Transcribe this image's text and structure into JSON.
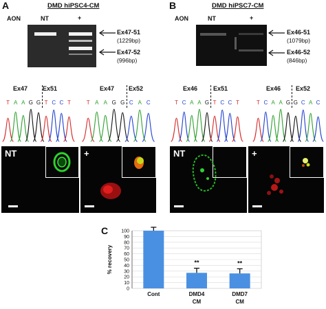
{
  "panel_a": {
    "letter": "A",
    "title": "DMD hiPSC4-CM",
    "aon_label": "AON",
    "lane_nt": "NT",
    "lane_plus": "+",
    "band1_label": "Ex47-51",
    "band1_size": "(1229bp)",
    "band2_label": "Ex47-52",
    "band2_size": "(996bp)",
    "chrom_left_ex_a": "Ex47",
    "chrom_left_ex_b": "Ex51",
    "chrom_right_ex_a": "Ex47",
    "chrom_right_ex_b": "Ex52",
    "seq_left": [
      "T",
      "A",
      "A",
      "G",
      "G",
      "T",
      "C",
      "C",
      "T"
    ],
    "seq_right": [
      "T",
      "A",
      "A",
      "G",
      "G",
      "C",
      "A",
      "C"
    ],
    "micro_nt": "NT",
    "micro_plus": "+"
  },
  "panel_b": {
    "letter": "B",
    "title": "DMD hiPSC7-CM",
    "aon_label": "AON",
    "lane_nt": "NT",
    "lane_plus": "+",
    "band1_label": "Ex46-51",
    "band1_size": "(1079bp)",
    "band2_label": "Ex46-52",
    "band2_size": "(846bp)",
    "chrom_left_ex_a": "Ex46",
    "chrom_left_ex_b": "Ex51",
    "chrom_right_ex_a": "Ex46",
    "chrom_right_ex_b": "Ex52",
    "seq_left": [
      "T",
      "C",
      "A",
      "A",
      "G",
      "T",
      "C",
      "C",
      "T"
    ],
    "seq_right": [
      "T",
      "C",
      "A",
      "A",
      "G",
      "G",
      "C",
      "A",
      "C"
    ],
    "micro_nt": "NT",
    "micro_plus": "+"
  },
  "panel_c": {
    "letter": "C"
  },
  "colors": {
    "A": "#2ca02c",
    "C": "#1f3fcf",
    "G": "#111111",
    "T": "#d62728",
    "bar": "#4a90e2"
  },
  "chart_data": {
    "type": "bar",
    "title": "",
    "xlabel": "",
    "ylabel": "% recovery",
    "categories": [
      "Cont",
      "DMD4 CM",
      "DMD7 CM"
    ],
    "values": [
      100,
      27,
      26
    ],
    "errors": [
      6,
      8,
      8
    ],
    "significance": [
      "",
      "**",
      "**"
    ],
    "ylim": [
      0,
      100
    ],
    "yticks": [
      0,
      10,
      20,
      30,
      40,
      50,
      60,
      70,
      80,
      90,
      100
    ],
    "grid": true
  }
}
